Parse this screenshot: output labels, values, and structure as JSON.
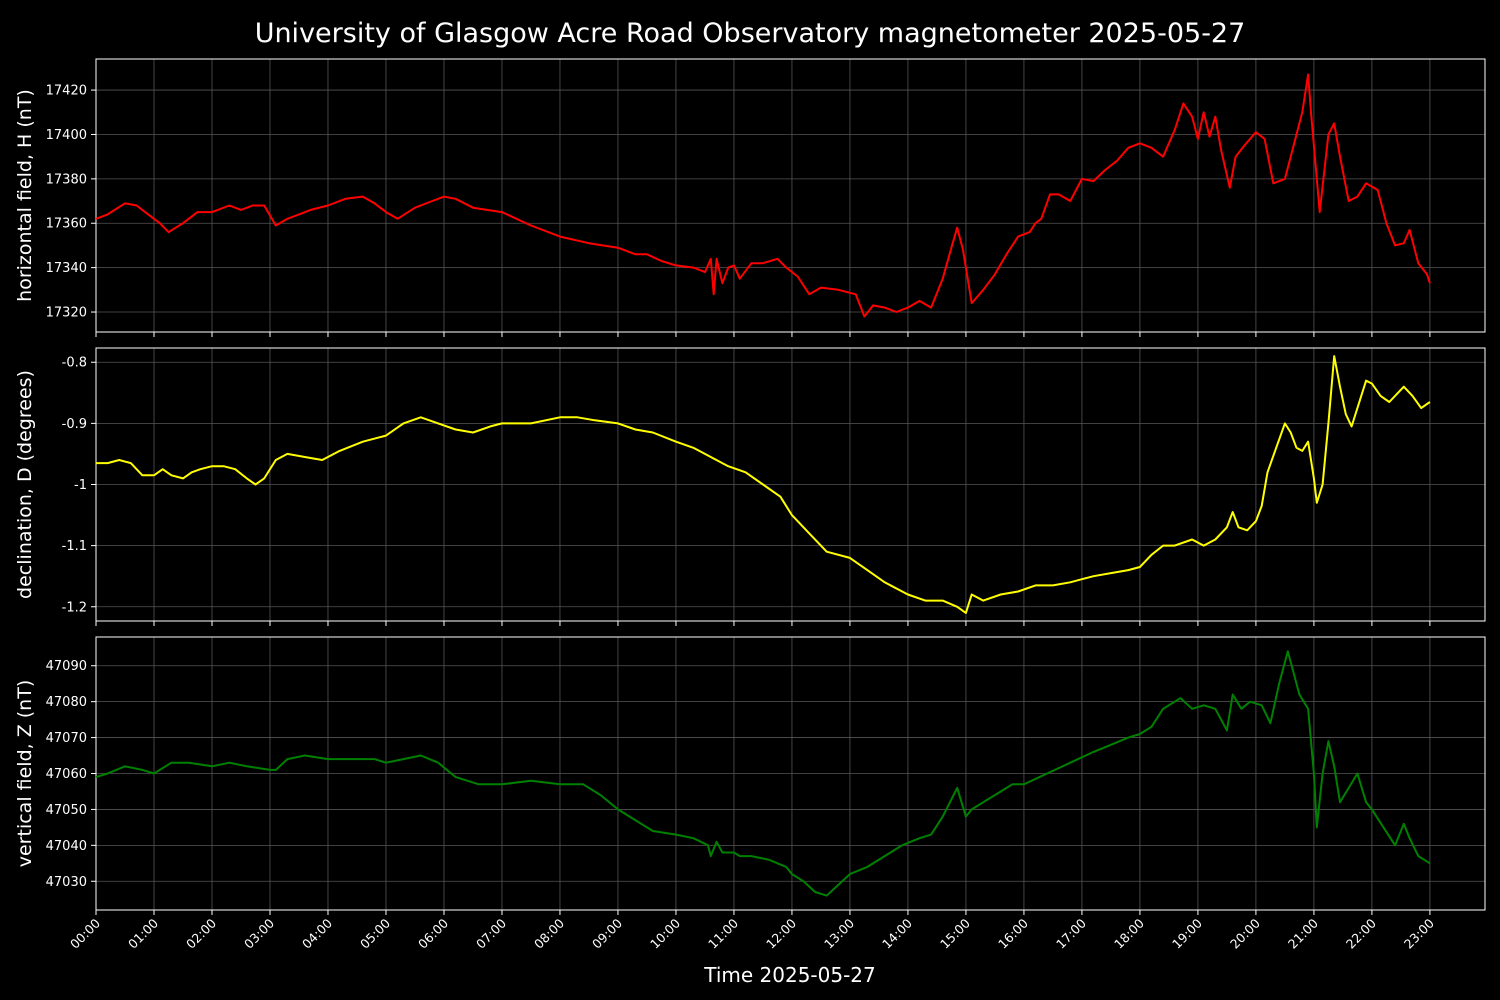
{
  "title": "University of Glasgow Acre Road Observatory magnetometer 2025-05-27",
  "xlabel": "Time 2025-05-27",
  "x_ticks": [
    "00:00",
    "01:00",
    "02:00",
    "03:00",
    "04:00",
    "05:00",
    "06:00",
    "07:00",
    "08:00",
    "09:00",
    "10:00",
    "11:00",
    "12:00",
    "13:00",
    "14:00",
    "15:00",
    "16:00",
    "17:00",
    "18:00",
    "19:00",
    "20:00",
    "21:00",
    "22:00",
    "23:00"
  ],
  "chart_data": [
    {
      "type": "line",
      "ylabel": "horizontal field, H (nT)",
      "color": "#ff0000",
      "xlim": [
        0,
        23.95
      ],
      "ylim": [
        17311,
        17434
      ],
      "yticks": [
        17320,
        17340,
        17360,
        17380,
        17400,
        17420
      ],
      "grid": true,
      "series": [
        {
          "x": [
            0,
            0.2,
            0.5,
            0.7,
            0.9,
            1.1,
            1.25,
            1.5,
            1.75,
            2.0,
            2.3,
            2.5,
            2.7,
            2.9,
            3.1,
            3.3,
            3.5,
            3.7,
            4.0,
            4.3,
            4.6,
            4.8,
            5.0,
            5.2,
            5.5,
            5.8,
            6.0,
            6.2,
            6.5,
            7.0,
            7.5,
            8.0,
            8.5,
            9.0,
            9.3,
            9.5,
            9.75,
            10.0,
            10.3,
            10.5,
            10.6,
            10.65,
            10.7,
            10.8,
            10.9,
            11.0,
            11.1,
            11.3,
            11.5,
            11.75,
            11.9,
            12.1,
            12.3,
            12.5,
            12.8,
            13.1,
            13.25,
            13.4,
            13.6,
            13.8,
            14.0,
            14.2,
            14.4,
            14.6,
            14.75,
            14.85,
            14.95,
            15.1,
            15.3,
            15.5,
            15.7,
            15.9,
            16.1,
            16.2,
            16.3,
            16.45,
            16.6,
            16.8,
            17.0,
            17.2,
            17.4,
            17.6,
            17.8,
            18.0,
            18.2,
            18.4,
            18.6,
            18.75,
            18.9,
            19.0,
            19.1,
            19.2,
            19.3,
            19.4,
            19.55,
            19.65,
            19.8,
            20.0,
            20.15,
            20.3,
            20.5,
            20.7,
            20.8,
            20.9,
            20.95,
            21.1,
            21.25,
            21.35,
            21.45,
            21.6,
            21.75,
            21.9,
            22.1,
            22.25,
            22.4,
            22.55,
            22.65,
            22.8,
            22.95,
            23.0
          ],
          "y": [
            17362,
            17364,
            17369,
            17368,
            17364,
            17360,
            17356,
            17360,
            17365,
            17365,
            17368,
            17366,
            17368,
            17368,
            17359,
            17362,
            17364,
            17366,
            17368,
            17371,
            17372,
            17369,
            17365,
            17362,
            17367,
            17370,
            17372,
            17371,
            17367,
            17365,
            17359,
            17354,
            17351,
            17349,
            17346,
            17346,
            17343,
            17341,
            17340,
            17338,
            17344,
            17328,
            17344,
            17333,
            17340,
            17341,
            17335,
            17342,
            17342,
            17344,
            17340,
            17336,
            17328,
            17331,
            17330,
            17328,
            17318,
            17323,
            17322,
            17320,
            17322,
            17325,
            17322,
            17335,
            17349,
            17358,
            17348,
            17324,
            17330,
            17337,
            17346,
            17354,
            17356,
            17360,
            17362,
            17373,
            17373,
            17370,
            17380,
            17379,
            17384,
            17388,
            17394,
            17396,
            17394,
            17390,
            17402,
            17414,
            17408,
            17398,
            17410,
            17399,
            17408,
            17393,
            17376,
            17390,
            17395,
            17401,
            17398,
            17378,
            17380,
            17400,
            17410,
            17427,
            17410,
            17365,
            17400,
            17405,
            17390,
            17370,
            17372,
            17378,
            17375,
            17360,
            17350,
            17351,
            17357,
            17342,
            17337,
            17333
          ]
        }
      ]
    },
    {
      "type": "line",
      "ylabel": "declination, D (degrees)",
      "color": "#ffff00",
      "xlim": [
        0,
        23.95
      ],
      "ylim": [
        -1.2233,
        -0.7767
      ],
      "yticks": [
        -0.8,
        -0.9,
        -1.0,
        -1.1,
        -1.2
      ],
      "grid": true,
      "series": [
        {
          "x": [
            0,
            0.2,
            0.4,
            0.6,
            0.8,
            1.0,
            1.15,
            1.3,
            1.5,
            1.65,
            1.8,
            2.0,
            2.2,
            2.4,
            2.6,
            2.75,
            2.9,
            3.1,
            3.3,
            3.6,
            3.9,
            4.2,
            4.6,
            5.0,
            5.3,
            5.6,
            5.9,
            6.2,
            6.5,
            6.8,
            7.0,
            7.2,
            7.5,
            8.0,
            8.3,
            8.6,
            9.0,
            9.3,
            9.6,
            10.0,
            10.3,
            10.6,
            10.9,
            11.2,
            11.5,
            11.8,
            12.0,
            12.3,
            12.6,
            13.0,
            13.3,
            13.6,
            14.0,
            14.3,
            14.6,
            14.85,
            15.0,
            15.1,
            15.3,
            15.6,
            15.9,
            16.2,
            16.5,
            16.8,
            17.0,
            17.2,
            17.5,
            17.8,
            18.0,
            18.2,
            18.4,
            18.6,
            18.9,
            19.1,
            19.3,
            19.5,
            19.6,
            19.7,
            19.85,
            20.0,
            20.1,
            20.2,
            20.35,
            20.5,
            20.6,
            20.7,
            20.8,
            20.9,
            21.0,
            21.05,
            21.15,
            21.25,
            21.35,
            21.45,
            21.55,
            21.65,
            21.8,
            21.9,
            22.0,
            22.15,
            22.3,
            22.45,
            22.55,
            22.7,
            22.85,
            23.0
          ],
          "y": [
            -0.965,
            -0.965,
            -0.96,
            -0.965,
            -0.985,
            -0.985,
            -0.975,
            -0.985,
            -0.99,
            -0.98,
            -0.975,
            -0.97,
            -0.97,
            -0.975,
            -0.99,
            -1.0,
            -0.99,
            -0.96,
            -0.95,
            -0.955,
            -0.96,
            -0.945,
            -0.93,
            -0.92,
            -0.9,
            -0.89,
            -0.9,
            -0.91,
            -0.915,
            -0.905,
            -0.9,
            -0.9,
            -0.9,
            -0.89,
            -0.89,
            -0.895,
            -0.9,
            -0.91,
            -0.915,
            -0.93,
            -0.94,
            -0.955,
            -0.97,
            -0.98,
            -1.0,
            -1.02,
            -1.05,
            -1.08,
            -1.11,
            -1.12,
            -1.14,
            -1.16,
            -1.18,
            -1.19,
            -1.19,
            -1.2,
            -1.21,
            -1.18,
            -1.19,
            -1.18,
            -1.175,
            -1.165,
            -1.165,
            -1.16,
            -1.155,
            -1.15,
            -1.145,
            -1.14,
            -1.135,
            -1.115,
            -1.1,
            -1.1,
            -1.09,
            -1.1,
            -1.09,
            -1.07,
            -1.045,
            -1.07,
            -1.075,
            -1.06,
            -1.035,
            -0.98,
            -0.94,
            -0.9,
            -0.915,
            -0.94,
            -0.945,
            -0.93,
            -0.99,
            -1.03,
            -1.0,
            -0.9,
            -0.79,
            -0.84,
            -0.885,
            -0.905,
            -0.86,
            -0.83,
            -0.835,
            -0.855,
            -0.865,
            -0.85,
            -0.84,
            -0.855,
            -0.875,
            -0.865
          ]
        }
      ]
    },
    {
      "type": "line",
      "ylabel": "vertical field, Z (nT)",
      "color": "#008000",
      "xlim": [
        0,
        23.95
      ],
      "ylim": [
        47022,
        47098
      ],
      "yticks": [
        47030,
        47040,
        47050,
        47060,
        47070,
        47080,
        47090
      ],
      "grid": true,
      "series": [
        {
          "x": [
            0,
            0.2,
            0.5,
            0.8,
            1.0,
            1.3,
            1.6,
            2.0,
            2.3,
            2.6,
            3.0,
            3.1,
            3.3,
            3.6,
            4.0,
            4.4,
            4.8,
            5.0,
            5.3,
            5.6,
            5.9,
            6.2,
            6.6,
            7.0,
            7.5,
            8.0,
            8.4,
            8.7,
            9.0,
            9.2,
            9.4,
            9.6,
            10.0,
            10.3,
            10.55,
            10.6,
            10.7,
            10.8,
            11.0,
            11.1,
            11.3,
            11.6,
            11.9,
            12.0,
            12.2,
            12.4,
            12.6,
            12.8,
            13.0,
            13.3,
            13.6,
            13.9,
            14.2,
            14.4,
            14.6,
            14.85,
            15.0,
            15.1,
            15.3,
            15.6,
            15.8,
            16.0,
            16.4,
            16.8,
            17.2,
            17.5,
            17.8,
            18.0,
            18.2,
            18.4,
            18.7,
            18.9,
            19.1,
            19.3,
            19.5,
            19.6,
            19.75,
            19.9,
            20.1,
            20.25,
            20.4,
            20.55,
            20.65,
            20.75,
            20.9,
            21.0,
            21.05,
            21.15,
            21.25,
            21.35,
            21.45,
            21.6,
            21.75,
            21.9,
            22.0,
            22.2,
            22.4,
            22.55,
            22.65,
            22.8,
            23.0
          ],
          "y": [
            47059,
            47060,
            47062,
            47061,
            47060,
            47063,
            47063,
            47062,
            47063,
            47062,
            47061,
            47061,
            47064,
            47065,
            47064,
            47064,
            47064,
            47063,
            47064,
            47065,
            47063,
            47059,
            47057,
            47057,
            47058,
            47057,
            47057,
            47054,
            47050,
            47048,
            47046,
            47044,
            47043,
            47042,
            47040,
            47037,
            47041,
            47038,
            47038,
            47037,
            47037,
            47036,
            47034,
            47032,
            47030,
            47027,
            47026,
            47029,
            47032,
            47034,
            47037,
            47040,
            47042,
            47043,
            47048,
            47056,
            47048,
            47050,
            47052,
            47055,
            47057,
            47057,
            47060,
            47063,
            47066,
            47068,
            47070,
            47071,
            47073,
            47078,
            47081,
            47078,
            47079,
            47078,
            47072,
            47082,
            47078,
            47080,
            47079,
            47074,
            47085,
            47094,
            47088,
            47082,
            47078,
            47060,
            47045,
            47060,
            47069,
            47062,
            47052,
            47056,
            47060,
            47052,
            47050,
            47045,
            47040,
            47046,
            47042,
            47037,
            47035
          ]
        }
      ]
    }
  ]
}
